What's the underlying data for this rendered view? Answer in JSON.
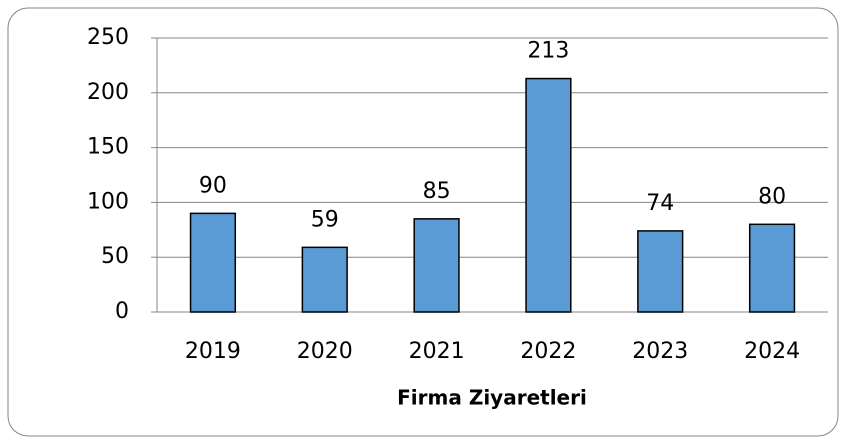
{
  "chart_data": {
    "type": "bar",
    "xlabel": "Firma Ziyaretleri",
    "categories": [
      "2019",
      "2020",
      "2021",
      "2022",
      "2023",
      "2024"
    ],
    "values": [
      90,
      59,
      85,
      213,
      74,
      80
    ],
    "color": "#5b9bd5",
    "ylim": [
      0,
      250
    ],
    "yticks": [
      0,
      50,
      100,
      150,
      200,
      250
    ],
    "grid": true
  }
}
